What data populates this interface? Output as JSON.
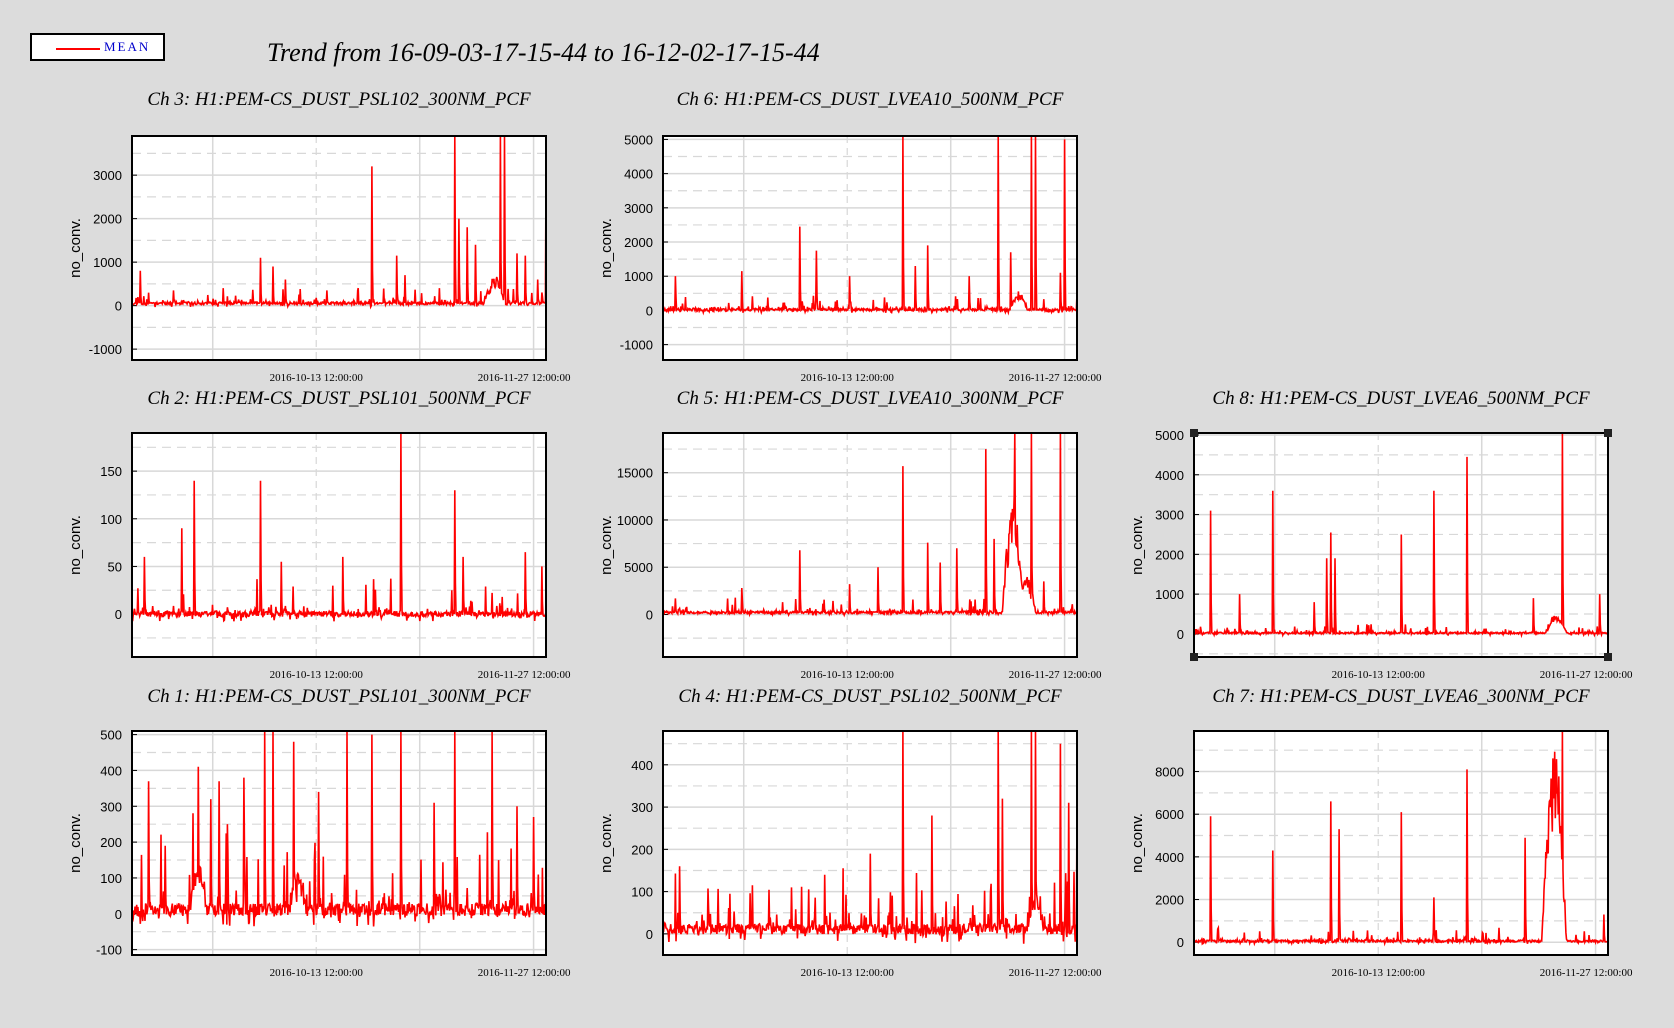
{
  "legend": {
    "label": "MEAN",
    "color": "#ff0000"
  },
  "title": "Trend from 16-09-03-17-15-44 to 16-12-02-17-15-44",
  "chart_data": [
    {
      "type": "line",
      "channel": "Ch 3",
      "title": "Ch 3: H1:PEM-CS_DUST_PSL102_300NM_PCF",
      "ylabel": "no_conv.",
      "ylim": [
        -1250,
        3900
      ],
      "yticks": [
        -1000,
        0,
        1000,
        2000,
        3000
      ],
      "x_tick_labels": [
        "2016-10-13 12:00:00",
        "2016-11-27 12:00:00"
      ],
      "series": [
        {
          "name": "MEAN",
          "baseline": 50,
          "noise": 60,
          "seed": 11,
          "spikes": [
            [
              0.02,
              800
            ],
            [
              0.1,
              350
            ],
            [
              0.22,
              400
            ],
            [
              0.31,
              1100
            ],
            [
              0.34,
              900
            ],
            [
              0.37,
              600
            ],
            [
              0.47,
              350
            ],
            [
              0.58,
              3200
            ],
            [
              0.64,
              1150
            ],
            [
              0.66,
              700
            ],
            [
              0.78,
              4000
            ],
            [
              0.79,
              2000
            ],
            [
              0.81,
              1800
            ],
            [
              0.83,
              1400
            ],
            [
              0.89,
              4000
            ],
            [
              0.9,
              4000
            ],
            [
              0.93,
              1200
            ],
            [
              0.95,
              1150
            ],
            [
              0.98,
              600
            ],
            [
              1.0,
              3000
            ]
          ],
          "bumps": [
            [
              0.85,
              0.9,
              600
            ]
          ]
        }
      ]
    },
    {
      "type": "line",
      "channel": "Ch 6",
      "title": "Ch 6: H1:PEM-CS_DUST_LVEA10_500NM_PCF",
      "ylabel": "no_conv.",
      "ylim": [
        -1450,
        5100
      ],
      "yticks": [
        -1000,
        0,
        1000,
        2000,
        3000,
        4000,
        5000
      ],
      "x_tick_labels": [
        "2016-10-13 12:00:00",
        "2016-11-27 12:00:00"
      ],
      "series": [
        {
          "name": "MEAN",
          "baseline": 20,
          "noise": 70,
          "seed": 23,
          "spikes": [
            [
              0.03,
              1000
            ],
            [
              0.19,
              1150
            ],
            [
              0.33,
              2450
            ],
            [
              0.37,
              1750
            ],
            [
              0.45,
              1000
            ],
            [
              0.58,
              5200
            ],
            [
              0.61,
              1300
            ],
            [
              0.64,
              1900
            ],
            [
              0.74,
              1000
            ],
            [
              0.81,
              5200
            ],
            [
              0.84,
              1700
            ],
            [
              0.89,
              5200
            ],
            [
              0.9,
              5200
            ],
            [
              0.96,
              1100
            ],
            [
              0.97,
              5000
            ],
            [
              1.0,
              500
            ]
          ],
          "bumps": [
            [
              0.84,
              0.88,
              500
            ]
          ]
        }
      ]
    },
    {
      "type": "line",
      "channel": "Ch 2",
      "title": "Ch 2: H1:PEM-CS_DUST_PSL101_500NM_PCF",
      "ylabel": "no_conv.",
      "ylim": [
        -45,
        190
      ],
      "yticks": [
        0,
        50,
        100,
        150
      ],
      "x_tick_labels": [
        "2016-10-13 12:00:00",
        "2016-11-27 12:00:00"
      ],
      "series": [
        {
          "name": "MEAN",
          "baseline": 0,
          "noise": 6,
          "seed": 37,
          "spikes": [
            [
              0.03,
              60
            ],
            [
              0.12,
              90
            ],
            [
              0.15,
              140
            ],
            [
              0.31,
              140
            ],
            [
              0.36,
              55
            ],
            [
              0.51,
              60
            ],
            [
              0.65,
              200
            ],
            [
              0.78,
              130
            ],
            [
              0.8,
              60
            ],
            [
              0.95,
              65
            ],
            [
              0.99,
              50
            ]
          ],
          "bumps": []
        }
      ]
    },
    {
      "type": "line",
      "channel": "Ch 5",
      "title": "Ch 5: H1:PEM-CS_DUST_LVEA10_300NM_PCF",
      "ylabel": "no_conv.",
      "ylim": [
        -4500,
        19200
      ],
      "yticks": [
        0,
        5000,
        10000,
        15000
      ],
      "x_tick_labels": [
        "2016-10-13 12:00:00",
        "2016-11-27 12:00:00"
      ],
      "series": [
        {
          "name": "MEAN",
          "baseline": 200,
          "noise": 250,
          "seed": 41,
          "spikes": [
            [
              0.03,
              1700
            ],
            [
              0.19,
              2800
            ],
            [
              0.33,
              6800
            ],
            [
              0.45,
              3200
            ],
            [
              0.52,
              5000
            ],
            [
              0.58,
              15700
            ],
            [
              0.64,
              7600
            ],
            [
              0.67,
              5500
            ],
            [
              0.71,
              7000
            ],
            [
              0.78,
              17500
            ],
            [
              0.8,
              8000
            ],
            [
              0.85,
              19500
            ],
            [
              0.89,
              19500
            ],
            [
              0.92,
              3500
            ],
            [
              0.96,
              19500
            ]
          ],
          "bumps": [
            [
              0.82,
              0.87,
              12000
            ],
            [
              0.86,
              0.9,
              4000
            ]
          ]
        }
      ]
    },
    {
      "type": "line",
      "channel": "Ch 8",
      "title": "Ch 8: H1:PEM-CS_DUST_LVEA6_500NM_PCF",
      "ylabel": "no_conv.",
      "ylim": [
        -580,
        5050
      ],
      "yticks": [
        0,
        1000,
        2000,
        3000,
        4000,
        5000
      ],
      "x_tick_labels": [
        "2016-10-13 12:00:00",
        "2016-11-27 12:00:00"
      ],
      "series": [
        {
          "name": "MEAN",
          "baseline": 20,
          "noise": 40,
          "seed": 53,
          "spikes": [
            [
              0.04,
              3100
            ],
            [
              0.11,
              1000
            ],
            [
              0.19,
              3600
            ],
            [
              0.29,
              800
            ],
            [
              0.32,
              1900
            ],
            [
              0.33,
              2550
            ],
            [
              0.34,
              1900
            ],
            [
              0.5,
              2500
            ],
            [
              0.58,
              3600
            ],
            [
              0.66,
              4450
            ],
            [
              0.82,
              900
            ],
            [
              0.89,
              5100
            ],
            [
              0.98,
              1000
            ]
          ],
          "bumps": [
            [
              0.85,
              0.9,
              500
            ]
          ]
        }
      ]
    },
    {
      "type": "line",
      "channel": "Ch 1",
      "title": "Ch 1: H1:PEM-CS_DUST_PSL101_300NM_PCF",
      "ylabel": "no_conv.",
      "ylim": [
        -115,
        510
      ],
      "yticks": [
        -100,
        0,
        100,
        200,
        300,
        400,
        500
      ],
      "x_tick_labels": [
        "2016-10-13 12:00:00",
        "2016-11-27 12:00:00"
      ],
      "series": [
        {
          "name": "MEAN",
          "baseline": 10,
          "noise": 35,
          "seed": 67,
          "spikes": [
            [
              0.04,
              370
            ],
            [
              0.08,
              190
            ],
            [
              0.16,
              410
            ],
            [
              0.19,
              320
            ],
            [
              0.21,
              370
            ],
            [
              0.23,
              250
            ],
            [
              0.27,
              380
            ],
            [
              0.32,
              510
            ],
            [
              0.34,
              510
            ],
            [
              0.39,
              480
            ],
            [
              0.45,
              340
            ],
            [
              0.52,
              510
            ],
            [
              0.58,
              500
            ],
            [
              0.65,
              510
            ],
            [
              0.73,
              310
            ],
            [
              0.78,
              510
            ],
            [
              0.87,
              510
            ],
            [
              0.93,
              300
            ],
            [
              0.97,
              270
            ]
          ],
          "bumps": [
            [
              0.14,
              0.18,
              150
            ],
            [
              0.38,
              0.42,
              120
            ]
          ]
        }
      ]
    },
    {
      "type": "line",
      "channel": "Ch 4",
      "title": "Ch 4: H1:PEM-CS_DUST_PSL102_500NM_PCF",
      "ylabel": "no_conv.",
      "ylim": [
        -50,
        480
      ],
      "yticks": [
        0,
        100,
        200,
        300,
        400
      ],
      "x_tick_labels": [
        "2016-10-13 12:00:00",
        "2016-11-27 12:00:00"
      ],
      "series": [
        {
          "name": "MEAN",
          "baseline": 10,
          "noise": 25,
          "seed": 71,
          "spikes": [
            [
              0.04,
              160
            ],
            [
              0.31,
              110
            ],
            [
              0.39,
              140
            ],
            [
              0.5,
              190
            ],
            [
              0.58,
              490
            ],
            [
              0.65,
              280
            ],
            [
              0.81,
              490
            ],
            [
              0.82,
              320
            ],
            [
              0.89,
              490
            ],
            [
              0.9,
              490
            ],
            [
              0.96,
              450
            ],
            [
              0.98,
              310
            ],
            [
              1.0,
              320
            ]
          ],
          "bumps": [
            [
              0.88,
              0.92,
              80
            ]
          ]
        }
      ]
    },
    {
      "type": "line",
      "channel": "Ch 7",
      "title": "Ch 7: H1:PEM-CS_DUST_LVEA6_300NM_PCF",
      "ylabel": "no_conv.",
      "ylim": [
        -600,
        9900
      ],
      "yticks": [
        0,
        2000,
        4000,
        6000,
        8000
      ],
      "x_tick_labels": [
        "2016-10-13 12:00:00",
        "2016-11-27 12:00:00"
      ],
      "series": [
        {
          "name": "MEAN",
          "baseline": 50,
          "noise": 100,
          "seed": 83,
          "spikes": [
            [
              0.04,
              5900
            ],
            [
              0.19,
              4300
            ],
            [
              0.33,
              6600
            ],
            [
              0.35,
              5300
            ],
            [
              0.5,
              6100
            ],
            [
              0.58,
              2100
            ],
            [
              0.66,
              8100
            ],
            [
              0.8,
              4900
            ],
            [
              0.89,
              10000
            ],
            [
              0.99,
              1300
            ]
          ],
          "bumps": [
            [
              0.84,
              0.9,
              9500
            ]
          ]
        }
      ]
    }
  ]
}
